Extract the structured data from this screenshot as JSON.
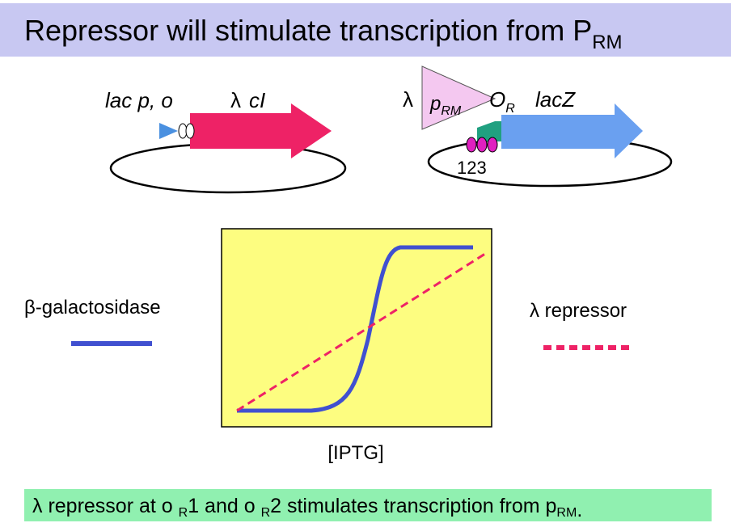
{
  "title": {
    "text": "Repressor will stimulate transcription from P",
    "subscript": "RM"
  },
  "plasmid1": {
    "promoter": "lac p, o",
    "lambda": "λ",
    "gene": "cI"
  },
  "plasmid2": {
    "lambda": "λ",
    "promoter": "p",
    "promoter_sub": "RM",
    "operator": "O",
    "operator_sub": "R",
    "gene": "lacZ",
    "sites": "123"
  },
  "graph": {
    "x_label": "[IPTG]",
    "legend": [
      {
        "name": "β-galactosidase"
      },
      {
        "name": "λ repressor"
      }
    ]
  },
  "caption": {
    "parts": [
      "λ repressor at o ",
      "R",
      "1 and o ",
      "R",
      "2 stimulates transcription from  p",
      "RM",
      "."
    ]
  }
}
